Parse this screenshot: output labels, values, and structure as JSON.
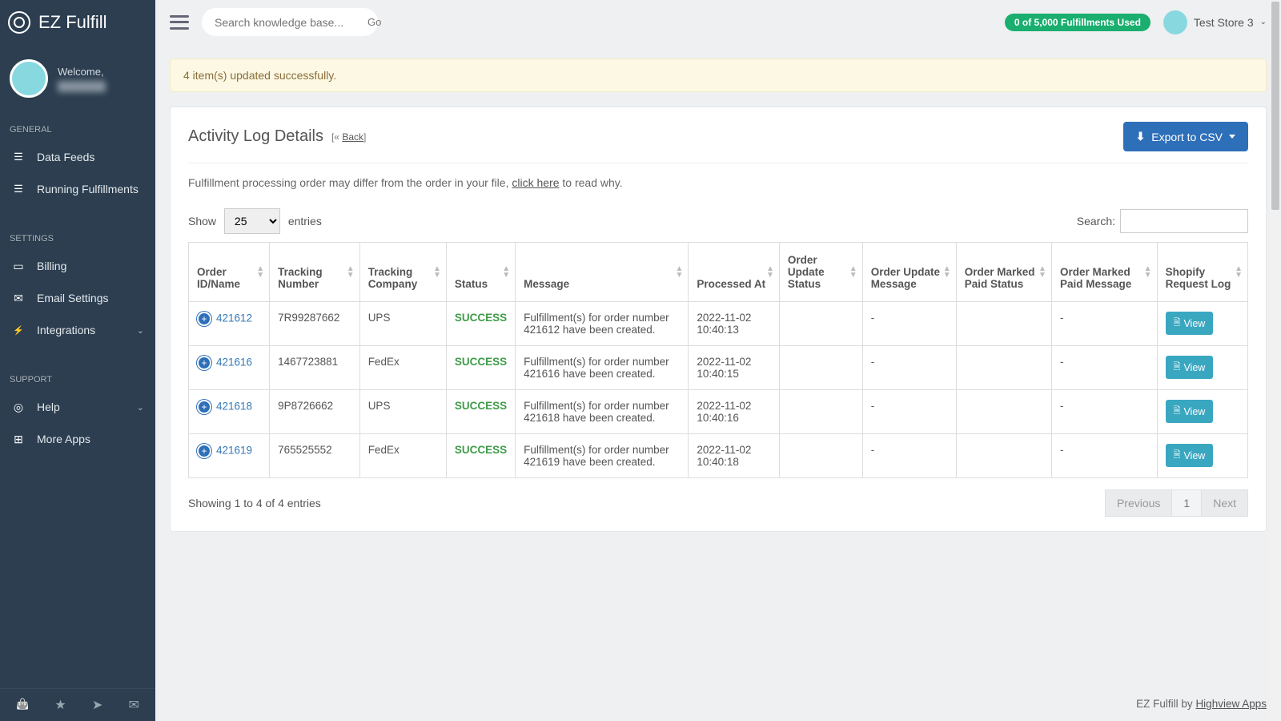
{
  "brand": "EZ Fulfill",
  "welcome_label": "Welcome,",
  "sections": {
    "general": "GENERAL",
    "settings": "SETTINGS",
    "support": "SUPPORT"
  },
  "nav": {
    "data_feeds": "Data Feeds",
    "running_fulfillments": "Running Fulfillments",
    "billing": "Billing",
    "email_settings": "Email Settings",
    "integrations": "Integrations",
    "help": "Help",
    "more_apps": "More Apps"
  },
  "topbar": {
    "search_placeholder": "Search knowledge base...",
    "go": "Go",
    "used_pill": "0 of 5,000 Fulfillments Used",
    "store": "Test Store 3"
  },
  "alert": "4 item(s) updated successfully.",
  "panel": {
    "title": "Activity Log Details",
    "back": "Back",
    "export": "Export to CSV",
    "hint_pre": "Fulfillment processing order may differ from the order in your file, ",
    "hint_link": "click here",
    "hint_post": " to read why."
  },
  "table": {
    "show": "Show",
    "entries": "entries",
    "page_size": "25",
    "search_label": "Search:",
    "columns": [
      "Order ID/Name",
      "Tracking Number",
      "Tracking Company",
      "Status",
      "Message",
      "Processed At",
      "Order Update Status",
      "Order Update Message",
      "Order Marked Paid Status",
      "Order Marked Paid Message",
      "Shopify Request Log"
    ],
    "view": "View",
    "rows": [
      {
        "order": "421612",
        "tracking": "7R99287662",
        "carrier": "UPS",
        "status": "SUCCESS",
        "msg": "Fulfillment(s) for order number 421612 have been created.",
        "at": "2022-11-02 10:40:13",
        "oum": "-",
        "omm": "-"
      },
      {
        "order": "421616",
        "tracking": "1467723881",
        "carrier": "FedEx",
        "status": "SUCCESS",
        "msg": "Fulfillment(s) for order number 421616 have been created.",
        "at": "2022-11-02 10:40:15",
        "oum": "-",
        "omm": "-"
      },
      {
        "order": "421618",
        "tracking": "9P8726662",
        "carrier": "UPS",
        "status": "SUCCESS",
        "msg": "Fulfillment(s) for order number 421618 have been created.",
        "at": "2022-11-02 10:40:16",
        "oum": "-",
        "omm": "-"
      },
      {
        "order": "421619",
        "tracking": "765525552",
        "carrier": "FedEx",
        "status": "SUCCESS",
        "msg": "Fulfillment(s) for order number 421619 have been created.",
        "at": "2022-11-02 10:40:18",
        "oum": "-",
        "omm": "-"
      }
    ],
    "info": "Showing 1 to 4 of 4 entries",
    "prev": "Previous",
    "next": "Next"
  },
  "footer": {
    "pre": "EZ Fulfill by ",
    "link": "Highview Apps"
  },
  "colors": {
    "sidebar": "#2c3e50",
    "accent_btn": "#2e6fb9",
    "success_pill": "#1aae6f",
    "success_text": "#3f9c49",
    "view_btn": "#3aa7c1",
    "alert_bg": "#fcf8e3"
  }
}
